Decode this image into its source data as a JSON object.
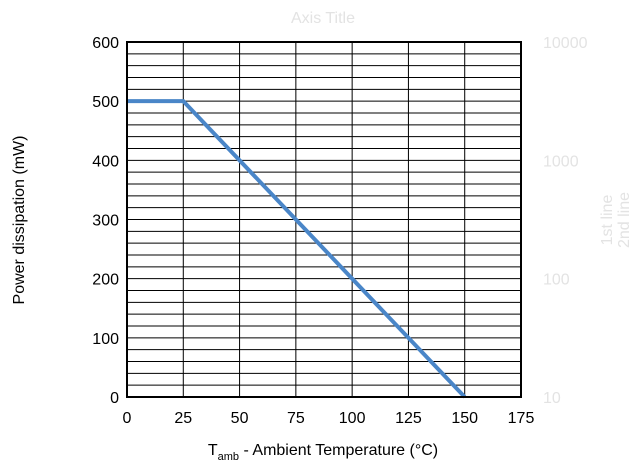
{
  "chart_data": {
    "type": "line",
    "title": "Axis Title",
    "xlabel": {
      "main": "T",
      "subscript": "amb",
      "rest": " - Ambient Temperature (°C)"
    },
    "ylabel": "Power dissipation (mW)",
    "xlim": [
      0,
      175
    ],
    "ylim": [
      0,
      600
    ],
    "x_ticks": [
      "0",
      "25",
      "50",
      "75",
      "100",
      "125",
      "150",
      "175"
    ],
    "y_ticks": [
      "0",
      "100",
      "200",
      "300",
      "400",
      "500",
      "600"
    ],
    "y_minor_step": 20,
    "grid": true,
    "secondary_axis": {
      "scale": "log",
      "ticks": [
        "10",
        "100",
        "1000",
        "10000"
      ],
      "labels": [
        "1st line",
        "2nd line"
      ]
    },
    "series": [
      {
        "x": [
          0,
          25,
          150
        ],
        "y": [
          500,
          500,
          0
        ],
        "color": "#4a86c8"
      }
    ]
  }
}
